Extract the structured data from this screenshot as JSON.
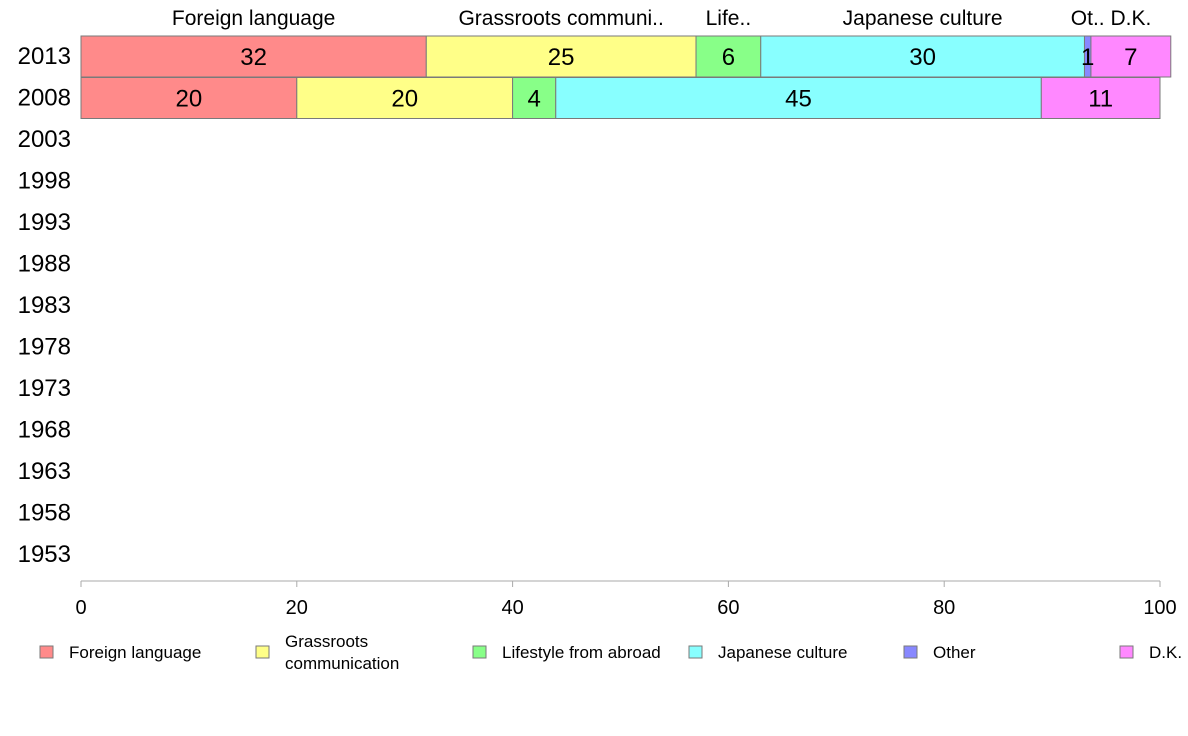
{
  "chart_data": {
    "type": "bar",
    "orientation": "horizontal",
    "stacked": true,
    "categories": [
      "2013",
      "2008",
      "2003",
      "1998",
      "1993",
      "1988",
      "1983",
      "1978",
      "1973",
      "1968",
      "1963",
      "1958",
      "1953"
    ],
    "series": [
      {
        "name": "Foreign language",
        "short": "Foreign language",
        "legend": [
          "Foreign language"
        ],
        "color": "#ff8a8a",
        "values": [
          32,
          20,
          null,
          null,
          null,
          null,
          null,
          null,
          null,
          null,
          null,
          null,
          null
        ]
      },
      {
        "name": "Grassroots communication",
        "short": "Grassroots communi..",
        "legend": [
          "Grassroots",
          "communication"
        ],
        "color": "#ffff88",
        "values": [
          25,
          20,
          null,
          null,
          null,
          null,
          null,
          null,
          null,
          null,
          null,
          null,
          null
        ]
      },
      {
        "name": "Lifestyle from abroad",
        "short": "Life..",
        "legend": [
          "Lifestyle from abroad"
        ],
        "color": "#88ff88",
        "values": [
          6,
          4,
          null,
          null,
          null,
          null,
          null,
          null,
          null,
          null,
          null,
          null,
          null
        ]
      },
      {
        "name": "Japanese culture",
        "short": "Japanese culture",
        "legend": [
          "Japanese culture"
        ],
        "color": "#88ffff",
        "values": [
          30,
          45,
          null,
          null,
          null,
          null,
          null,
          null,
          null,
          null,
          null,
          null,
          null
        ]
      },
      {
        "name": "Other",
        "short": "Ot..",
        "legend": [
          "Other"
        ],
        "color": "#8888ff",
        "values": [
          0.6,
          0,
          null,
          null,
          null,
          null,
          null,
          null,
          null,
          null,
          null,
          null,
          null
        ]
      },
      {
        "name": "D.K.",
        "short": "D.K.",
        "legend": [
          "D.K."
        ],
        "color": "#ff88ff",
        "values": [
          7.4,
          11,
          null,
          null,
          null,
          null,
          null,
          null,
          null,
          null,
          null,
          null,
          null
        ]
      }
    ],
    "bar_labels": [
      [
        "32",
        "25",
        "6",
        "30",
        "1",
        "7"
      ],
      [
        "20",
        "20",
        "4",
        "45",
        "",
        "11"
      ]
    ],
    "xticks": [
      "0",
      "20",
      "40",
      "60",
      "80",
      "100"
    ],
    "xlim": [
      0,
      100
    ],
    "grid": false,
    "legend_position": "bottom",
    "title": "",
    "xlabel": "",
    "ylabel": ""
  }
}
